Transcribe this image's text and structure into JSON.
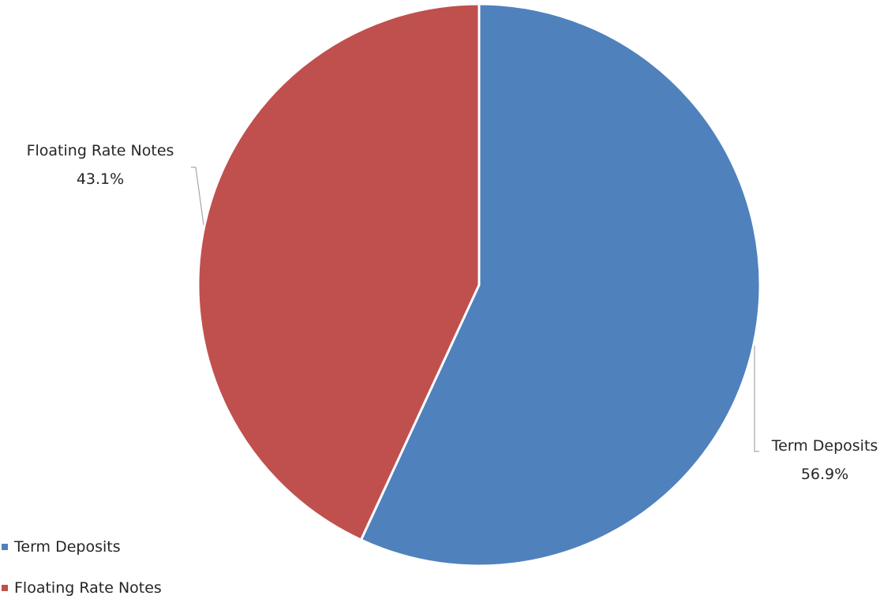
{
  "chart_data": {
    "type": "pie",
    "slices": [
      {
        "label": "Term Deposits",
        "value": 56.9,
        "display": "56.9%",
        "color": "#4F81BD"
      },
      {
        "label": "Floating Rate Notes",
        "value": 43.1,
        "display": "43.1%",
        "color": "#C0504D"
      }
    ],
    "start_angle": "12 o'clock",
    "direction": "clockwise",
    "legend_position": "bottom-left",
    "data_labels": "outside with leader lines"
  }
}
